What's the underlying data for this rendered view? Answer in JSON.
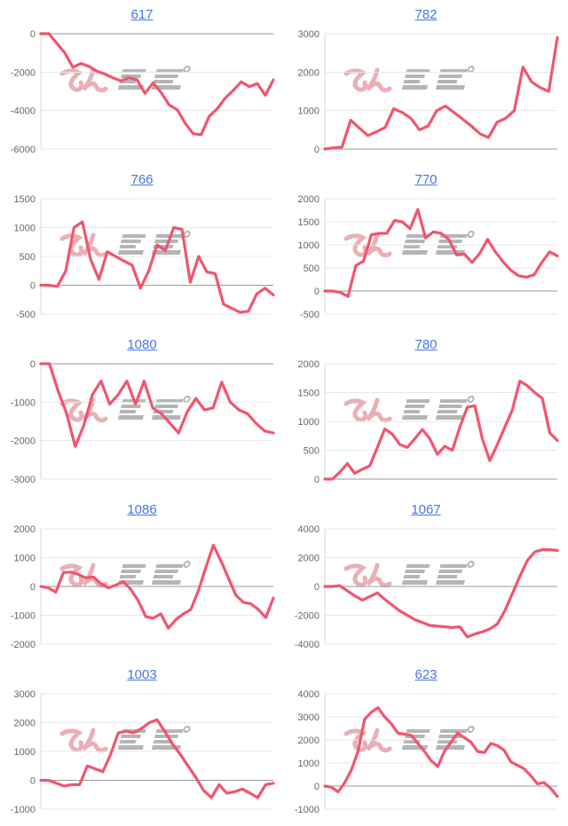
{
  "page": {
    "background": "#ffffff"
  },
  "colors": {
    "line": "#f1556d",
    "grid_line": "#e7e7e7",
    "zero_line": "#999999",
    "axis_line": "#d9d9d9",
    "tick_label": "#666666",
    "title_link": "#4577e0",
    "watermark_pink": "#e8a7ae",
    "watermark_gray": "#a9a9a9"
  },
  "watermark": {
    "label": "minrepo-logo"
  },
  "chart_data": [
    {
      "type": "line",
      "title": "617",
      "xlabel": "",
      "ylabel": "",
      "grid": true,
      "legend": "none",
      "ylim": [
        -6000,
        0
      ],
      "yticks": [
        0,
        -2000,
        -4000,
        -6000
      ],
      "values": [
        0,
        0,
        -500,
        -1000,
        -1750,
        -1550,
        -1700,
        -1950,
        -2100,
        -2300,
        -2450,
        -2300,
        -2400,
        -3100,
        -2550,
        -3050,
        -3700,
        -3950,
        -4650,
        -5200,
        -5250,
        -4300,
        -3900,
        -3350,
        -2950,
        -2500,
        -2750,
        -2600,
        -3200,
        -2400
      ]
    },
    {
      "type": "line",
      "title": "782",
      "xlabel": "",
      "ylabel": "",
      "grid": true,
      "legend": "none",
      "ylim": [
        0,
        3000
      ],
      "yticks": [
        3000,
        2000,
        1000,
        0
      ],
      "values": [
        0,
        30,
        50,
        750,
        550,
        350,
        450,
        560,
        1050,
        950,
        800,
        500,
        600,
        1000,
        1120,
        950,
        780,
        600,
        400,
        300,
        700,
        800,
        1000,
        2130,
        1750,
        1600,
        1500,
        2900
      ]
    },
    {
      "type": "line",
      "title": "766",
      "xlabel": "",
      "ylabel": "",
      "grid": true,
      "legend": "none",
      "ylim": [
        -500,
        1500
      ],
      "yticks": [
        1500,
        1000,
        500,
        0,
        -500
      ],
      "values": [
        0,
        0,
        -20,
        250,
        1000,
        1100,
        450,
        100,
        580,
        500,
        420,
        350,
        -50,
        250,
        700,
        600,
        1000,
        970,
        50,
        500,
        230,
        200,
        -330,
        -400,
        -470,
        -450,
        -150,
        -50,
        -170
      ]
    },
    {
      "type": "line",
      "title": "770",
      "xlabel": "",
      "ylabel": "",
      "grid": true,
      "legend": "none",
      "ylim": [
        -500,
        2000
      ],
      "yticks": [
        2000,
        1500,
        1000,
        500,
        0,
        -500
      ],
      "values": [
        0,
        0,
        -30,
        -120,
        550,
        650,
        1220,
        1250,
        1250,
        1530,
        1500,
        1350,
        1770,
        1150,
        1280,
        1250,
        1120,
        780,
        800,
        620,
        820,
        1120,
        850,
        630,
        450,
        330,
        300,
        350,
        620,
        850,
        760
      ]
    },
    {
      "type": "line",
      "title": "1080",
      "xlabel": "",
      "ylabel": "",
      "grid": true,
      "legend": "none",
      "ylim": [
        -3000,
        0
      ],
      "yticks": [
        0,
        -1000,
        -2000,
        -3000
      ],
      "values": [
        0,
        0,
        -700,
        -1300,
        -2150,
        -1600,
        -800,
        -450,
        -1050,
        -800,
        -450,
        -1050,
        -450,
        -1150,
        -1300,
        -1550,
        -1800,
        -1250,
        -900,
        -1200,
        -1150,
        -480,
        -1000,
        -1200,
        -1300,
        -1550,
        -1750,
        -1800
      ]
    },
    {
      "type": "line",
      "title": "780",
      "xlabel": "",
      "ylabel": "",
      "grid": true,
      "legend": "none",
      "ylim": [
        0,
        2000
      ],
      "yticks": [
        2000,
        1500,
        1000,
        500,
        0
      ],
      "values": [
        0,
        0,
        120,
        270,
        100,
        170,
        230,
        550,
        870,
        780,
        600,
        550,
        700,
        860,
        700,
        430,
        570,
        500,
        900,
        1250,
        1270,
        700,
        320,
        600,
        900,
        1200,
        1700,
        1620,
        1500,
        1400,
        800,
        670
      ]
    },
    {
      "type": "line",
      "title": "1086",
      "xlabel": "",
      "ylabel": "",
      "grid": true,
      "legend": "none",
      "ylim": [
        -2000,
        2000
      ],
      "yticks": [
        2000,
        1000,
        0,
        -1000,
        -2000
      ],
      "values": [
        0,
        -50,
        -200,
        480,
        500,
        420,
        300,
        330,
        100,
        -50,
        50,
        170,
        -100,
        -500,
        -1050,
        -1100,
        -950,
        -1450,
        -1150,
        -950,
        -800,
        -150,
        650,
        1430,
        900,
        300,
        -300,
        -550,
        -600,
        -800,
        -1080,
        -400
      ]
    },
    {
      "type": "line",
      "title": "1067",
      "xlabel": "",
      "ylabel": "",
      "grid": true,
      "legend": "none",
      "ylim": [
        -4000,
        4000
      ],
      "yticks": [
        4000,
        2000,
        0,
        -2000,
        -4000
      ],
      "values": [
        0,
        0,
        50,
        -300,
        -650,
        -950,
        -700,
        -450,
        -900,
        -1300,
        -1700,
        -2000,
        -2300,
        -2500,
        -2700,
        -2750,
        -2800,
        -2850,
        -2800,
        -3500,
        -3300,
        -3150,
        -2950,
        -2600,
        -1700,
        -500,
        700,
        1800,
        2400,
        2550,
        2550,
        2500
      ]
    },
    {
      "type": "line",
      "title": "1003",
      "xlabel": "",
      "ylabel": "",
      "grid": true,
      "legend": "none",
      "ylim": [
        -1000,
        3000
      ],
      "yticks": [
        3000,
        2000,
        1000,
        0,
        -1000
      ],
      "values": [
        0,
        0,
        -100,
        -200,
        -150,
        -150,
        500,
        400,
        300,
        900,
        1650,
        1700,
        1650,
        1800,
        2000,
        2100,
        1700,
        1250,
        900,
        500,
        100,
        -350,
        -600,
        -150,
        -450,
        -400,
        -300,
        -450,
        -600,
        -150,
        -100
      ]
    },
    {
      "type": "line",
      "title": "623",
      "xlabel": "",
      "ylabel": "",
      "grid": true,
      "legend": "none",
      "ylim": [
        -1000,
        4000
      ],
      "yticks": [
        4000,
        3000,
        2000,
        1000,
        0,
        -1000
      ],
      "values": [
        0,
        -50,
        -250,
        150,
        700,
        1500,
        2900,
        3200,
        3400,
        3000,
        2700,
        2300,
        2250,
        2200,
        1850,
        1500,
        1100,
        850,
        1500,
        1900,
        2300,
        2100,
        1900,
        1500,
        1450,
        1850,
        1750,
        1550,
        1050,
        900,
        750,
        450,
        100,
        150,
        -100,
        -450
      ]
    }
  ]
}
